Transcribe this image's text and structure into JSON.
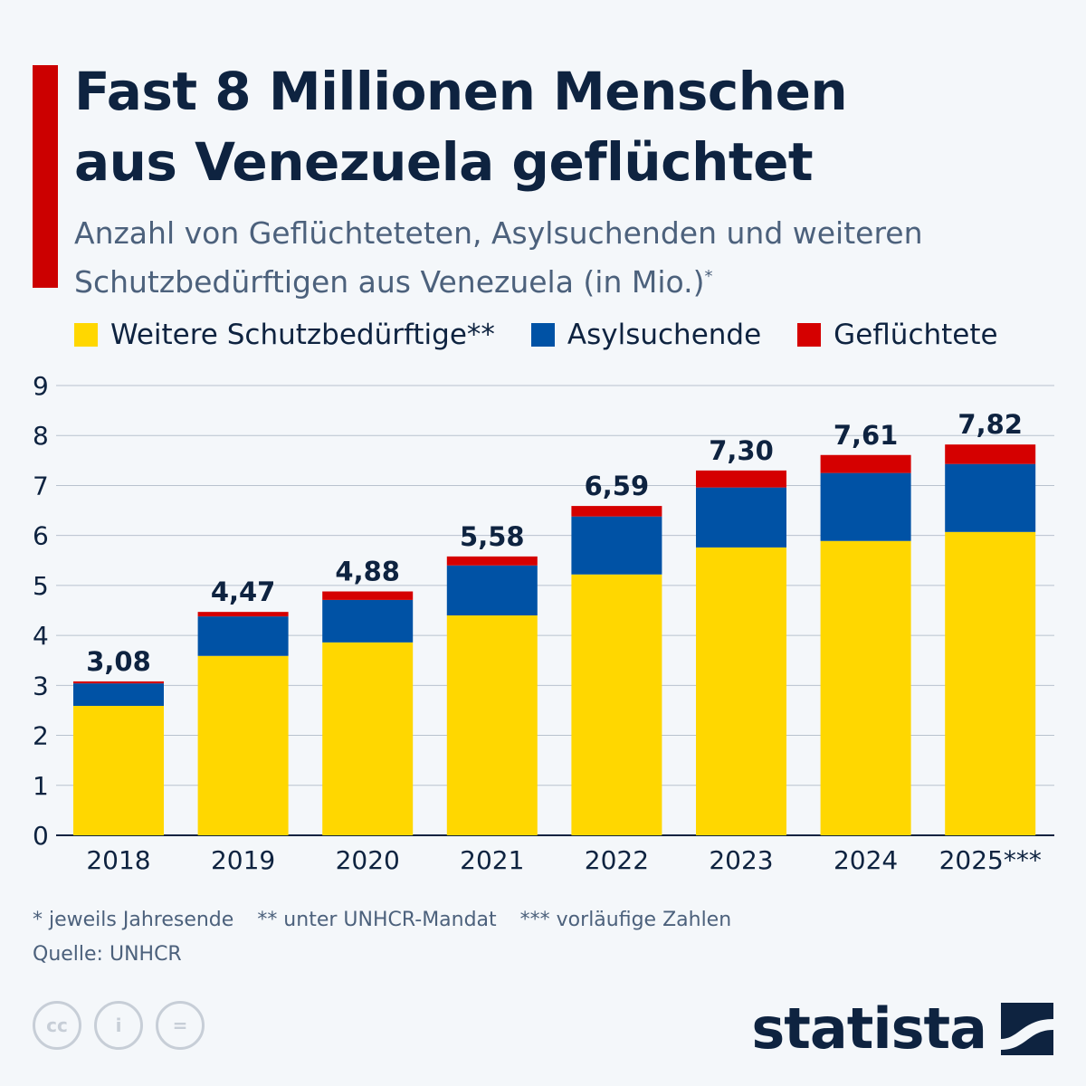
{
  "header": {
    "title_line1": "Fast 8 Millionen Menschen",
    "title_line2": "aus Venezuela geflüchtet",
    "subtitle": "Anzahl von Geflüchteteten, Asylsuchenden und weiteren Schutzbedürftigen aus Venezuela (in Mio.)",
    "subtitle_mark": "*"
  },
  "colors": {
    "accent": "#cc0000",
    "weitere": "#ffd700",
    "asyl": "#0052a5",
    "gefluechtete": "#d50000"
  },
  "chart_data": {
    "type": "bar",
    "stacked": true,
    "categories": [
      "2018",
      "2019",
      "2020",
      "2021",
      "2022",
      "2023",
      "2024",
      "2025***"
    ],
    "series": [
      {
        "name": "Weitere Schutzbedürftige**",
        "color": "#ffd700",
        "values": [
          2.59,
          3.59,
          3.86,
          4.4,
          5.22,
          5.76,
          5.89,
          6.07
        ]
      },
      {
        "name": "Asylsuchende",
        "color": "#0052a5",
        "values": [
          0.45,
          0.79,
          0.85,
          1.0,
          1.16,
          1.2,
          1.36,
          1.36
        ]
      },
      {
        "name": "Geflüchtete",
        "color": "#d50000",
        "values": [
          0.04,
          0.09,
          0.17,
          0.18,
          0.21,
          0.34,
          0.36,
          0.39
        ]
      }
    ],
    "totals": [
      "3,08",
      "4,47",
      "4,88",
      "5,58",
      "6,59",
      "7,30",
      "7,61",
      "7,82"
    ],
    "ylim": [
      0,
      9
    ],
    "yticks": [
      "0",
      "1",
      "2",
      "3",
      "4",
      "5",
      "6",
      "7",
      "8",
      "9"
    ],
    "grid": true,
    "legend": "top"
  },
  "footer": {
    "notes": [
      "* jeweils Jahresende",
      "** unter UNHCR-Mandat",
      "*** vorläufige Zahlen"
    ],
    "source": "Quelle: UNHCR",
    "logo": "statista",
    "cc_icons": [
      "cc-icon",
      "attribution-icon",
      "no-derivatives-icon"
    ]
  }
}
